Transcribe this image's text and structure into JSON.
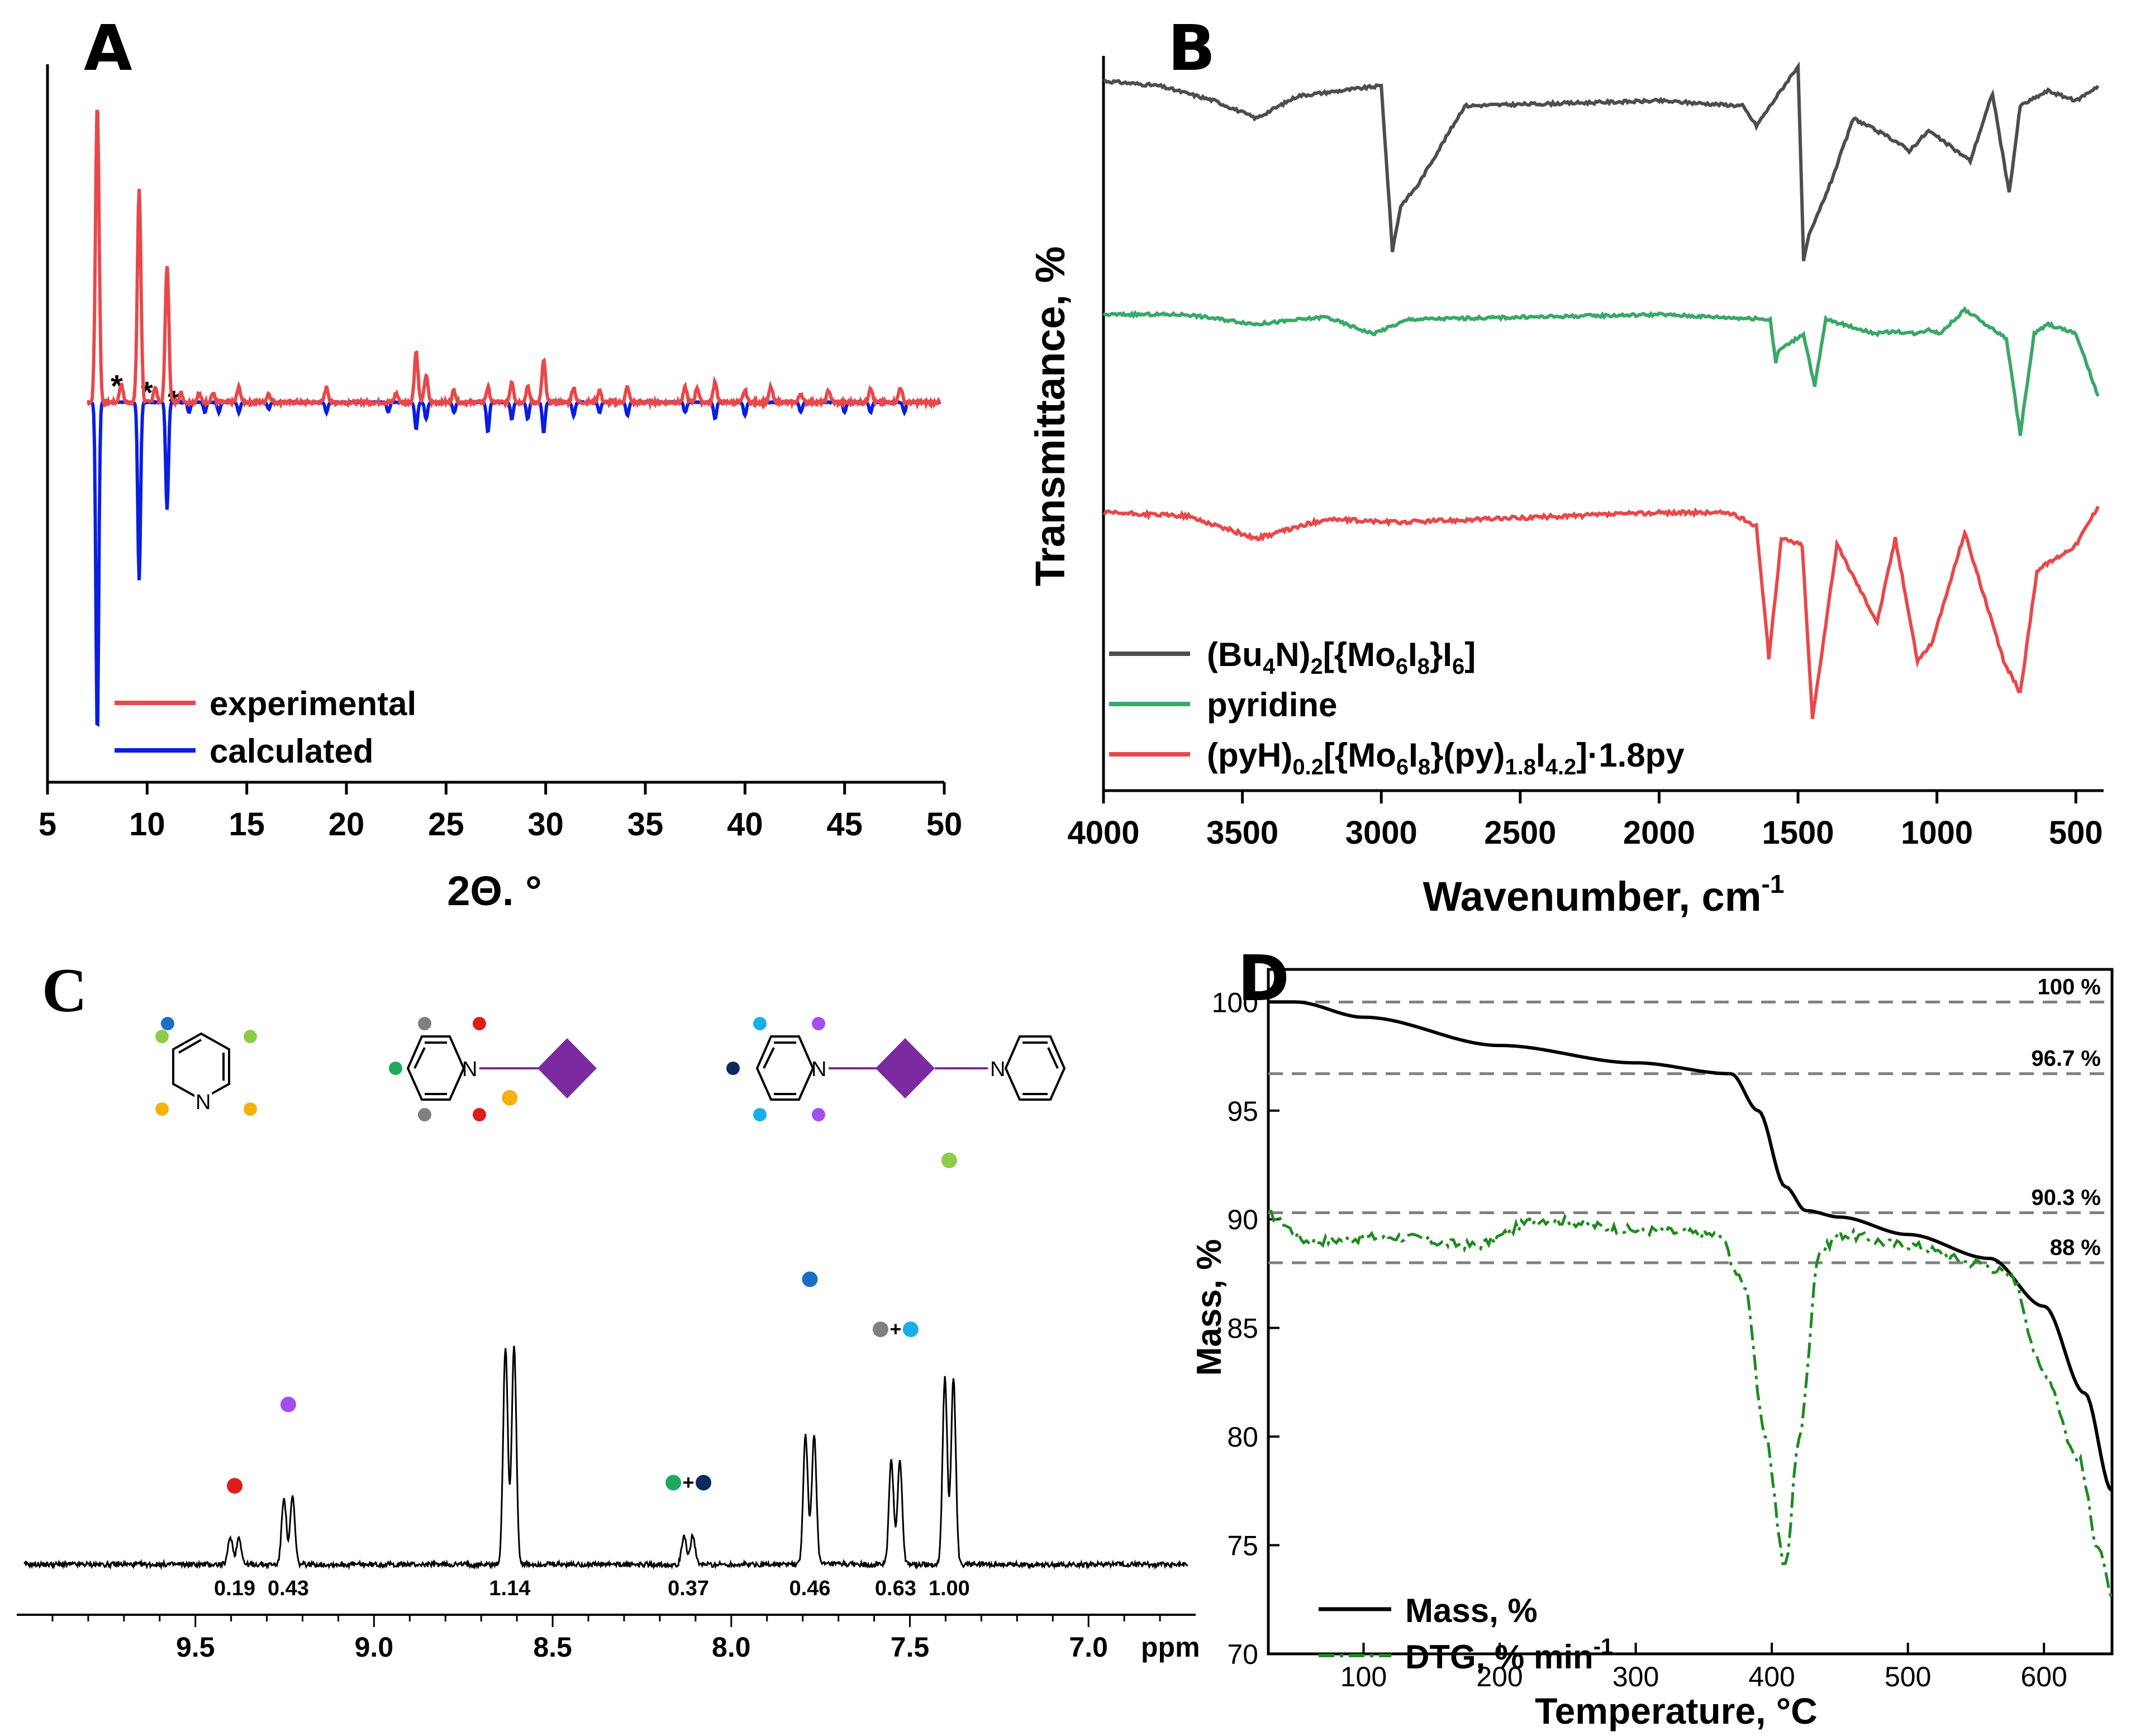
{
  "panels": {
    "A": {
      "letter": "A"
    },
    "B": {
      "letter": "B"
    },
    "C": {
      "letter": "C"
    },
    "D": {
      "letter": "D"
    }
  },
  "chart_data": [
    {
      "panel": "A",
      "type": "line",
      "xlabel": "2Θ. °",
      "ylabel": "",
      "xlim": [
        5,
        50
      ],
      "xticks": [
        5,
        10,
        15,
        20,
        25,
        30,
        35,
        40,
        45,
        50
      ],
      "annotations": [
        "*",
        "*",
        "*"
      ],
      "colors": {
        "experimental": "#e8484a",
        "calculated": "#0a1ee0"
      },
      "series": [
        {
          "name": "experimental",
          "x": [
            7.5,
            8.7,
            9.6,
            10.4,
            11.0,
            11.7,
            12.6,
            13.3,
            14.6,
            16.1,
            19.0,
            22.5,
            23.5,
            24.0,
            25.4,
            27.1,
            28.3,
            29.1,
            29.9,
            31.4,
            32.7,
            34.1,
            37.0,
            37.6,
            38.5,
            40.0,
            41.3,
            42.8,
            44.2,
            46.3,
            47.8
          ],
          "values": [
            100,
            6,
            71,
            5,
            46,
            3,
            3,
            3,
            5,
            3,
            5,
            3,
            17,
            9,
            4,
            5,
            7,
            5,
            14,
            5,
            4,
            5,
            5,
            5,
            7,
            4,
            5,
            3,
            4,
            5,
            5
          ]
        },
        {
          "name": "calculated",
          "x": [
            7.5,
            9.6,
            11.0,
            12.1,
            12.9,
            13.6,
            14.6,
            16.1,
            19.0,
            22.1,
            23.5,
            24.0,
            25.4,
            27.1,
            28.3,
            29.1,
            29.9,
            31.4,
            32.7,
            34.1,
            37.0,
            38.5,
            40.0,
            42.8,
            45.0,
            46.3,
            48.0
          ],
          "values": [
            -100,
            -53,
            -32,
            -3,
            -3,
            -3,
            -3,
            -2,
            -3,
            -3,
            -8,
            -5,
            -3,
            -9,
            -5,
            -5,
            -9,
            -4,
            -3,
            -4,
            -3,
            -5,
            -4,
            -3,
            -3,
            -3,
            -3
          ]
        }
      ]
    },
    {
      "panel": "B",
      "type": "line",
      "xlabel": "Wavenumber, cm",
      "xlabel_sup": "-1",
      "ylabel": "Transmittance, %",
      "xlim": [
        4000,
        400
      ],
      "xticks": [
        4000,
        3500,
        3000,
        2500,
        2000,
        1500,
        1000,
        500
      ],
      "legend": [
        {
          "text": "(Bu",
          "sub1": "4",
          "text2": "N)",
          "sub2": "2",
          "text3": "[{Mo",
          "sub3": "6",
          "text4": "I",
          "sub4": "8",
          "text5": "}I",
          "sub5": "6",
          "text6": "]",
          "color": "#4d4d4d"
        },
        {
          "text": "pyridine",
          "color": "#3aa866"
        },
        {
          "text": "(pyH)",
          "sub1": "0.2",
          "text2": "[{Mo",
          "sub2": "6",
          "text3": "I",
          "sub3": "8",
          "text4": "}(py)",
          "sub4": "1.8",
          "text5": "I",
          "sub5": "4.2",
          "text6": "]·1.8py",
          "color": "#e8484a"
        }
      ],
      "series": [
        {
          "name": "(Bu4N)2[{Mo6I8}I6]",
          "x": [
            4000,
            3800,
            3600,
            3450,
            3300,
            3000,
            2960,
            2930,
            2870,
            2700,
            2000,
            1700,
            1650,
            1500,
            1480,
            1460,
            1380,
            1300,
            1150,
            1100,
            1030,
            880,
            800,
            740,
            700,
            600,
            500,
            420
          ],
          "values": [
            90,
            88,
            82,
            75,
            84,
            88,
            22,
            40,
            48,
            80,
            82,
            80,
            72,
            96,
            18,
            28,
            50,
            75,
            66,
            62,
            70,
            58,
            85,
            45,
            80,
            86,
            82,
            88
          ]
        },
        {
          "name": "pyridine",
          "x": [
            4000,
            3700,
            3450,
            3200,
            3080,
            3030,
            2900,
            2000,
            1600,
            1580,
            1570,
            1480,
            1440,
            1400,
            1220,
            1150,
            1070,
            1030,
            990,
            900,
            750,
            700,
            650,
            600,
            500,
            420
          ],
          "values": [
            90,
            90,
            86,
            89,
            84,
            82,
            88,
            90,
            88,
            70,
            75,
            82,
            60,
            88,
            82,
            83,
            82,
            84,
            82,
            92,
            80,
            40,
            82,
            86,
            82,
            56
          ]
        },
        {
          "name": "(pyH)0.2[{Mo6I8}(py)1.8I4.2]·1.8py",
          "x": [
            4000,
            3700,
            3450,
            3200,
            2950,
            2000,
            1750,
            1650,
            1605,
            1560,
            1485,
            1448,
            1360,
            1215,
            1150,
            1070,
            1015,
            900,
            760,
            700,
            640,
            500,
            420
          ],
          "values": [
            90,
            89,
            82,
            88,
            87,
            90,
            90,
            86,
            45,
            82,
            80,
            26,
            80,
            56,
            82,
            44,
            50,
            84,
            44,
            34,
            72,
            80,
            92
          ]
        }
      ]
    },
    {
      "panel": "C",
      "type": "line",
      "xlabel": "ppm",
      "xlim": [
        10.0,
        6.7
      ],
      "xticks": [
        "9.5",
        "9.0",
        "8.5",
        "8.0",
        "7.5",
        "7.0"
      ],
      "peaks": [
        {
          "shift": 9.39,
          "integral": "0.19",
          "marker": "#e01b1b"
        },
        {
          "shift": 9.24,
          "integral": "0.43",
          "marker": "#a24ff0"
        },
        {
          "shift": 8.62,
          "integral": "1.14",
          "marker": "#f5b10c"
        },
        {
          "shift": 8.12,
          "integral": "0.37",
          "marker": "#1ea860",
          "marker2": "#0d2a5e"
        },
        {
          "shift": 7.78,
          "integral": "0.46",
          "marker": "#1a6fc4"
        },
        {
          "shift": 7.54,
          "integral": "0.63",
          "marker": "#808080",
          "marker2": "#1aaee8"
        },
        {
          "shift": 7.39,
          "integral": "1.00",
          "marker": "#8ccc4a"
        }
      ],
      "structure_labels": [
        "N",
        "N",
        "N",
        "N"
      ]
    },
    {
      "panel": "D",
      "type": "line",
      "xlabel": "Temperature, °C",
      "ylabel": "Mass, %",
      "xlim": [
        30,
        650
      ],
      "ylim": [
        70,
        101.5
      ],
      "xticks": [
        100,
        200,
        300,
        400,
        500,
        600
      ],
      "yticks": [
        70,
        75,
        80,
        85,
        90,
        95,
        100
      ],
      "reference_lines": [
        {
          "y": 100,
          "label": "100 %"
        },
        {
          "y": 96.7,
          "label": "96.7 %"
        },
        {
          "y": 90.3,
          "label": "90.3 %"
        },
        {
          "y": 88,
          "label": "88 %"
        }
      ],
      "legend": [
        {
          "text": "Mass, %",
          "color": "#000000"
        },
        {
          "text": "DTG, % min",
          "sup": "-1",
          "color": "#1f8a1f"
        }
      ],
      "series": [
        {
          "name": "Mass, %",
          "x": [
            30,
            50,
            100,
            200,
            300,
            370,
            390,
            410,
            425,
            450,
            500,
            560,
            600,
            630,
            650
          ],
          "values": [
            100,
            100,
            99.3,
            98.0,
            97.2,
            96.7,
            95,
            91.5,
            90.4,
            90.1,
            89.3,
            88.2,
            86.0,
            82.0,
            77.5
          ]
        },
        {
          "name": "DTG, % min-1",
          "x": [
            30,
            60,
            120,
            180,
            232,
            300,
            360,
            380,
            395,
            410,
            420,
            435,
            450,
            500,
            550,
            575,
            600,
            625,
            640,
            650
          ],
          "values": [
            90.2,
            89.0,
            89.2,
            88.8,
            90.0,
            89.5,
            89.3,
            87.0,
            80.0,
            74.0,
            80.0,
            88.5,
            89.3,
            88.8,
            88.0,
            87.5,
            83.0,
            79.0,
            75.0,
            72.5
          ]
        }
      ]
    }
  ]
}
